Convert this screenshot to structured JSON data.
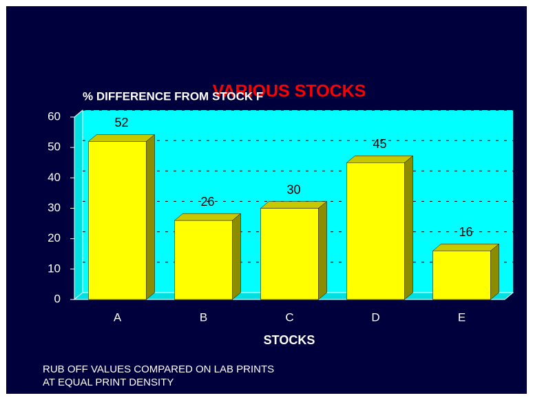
{
  "chart_data": {
    "type": "bar",
    "title": "VARIOUS STOCKS",
    "subtitle": "% DIFFERENCE FROM STOCK F",
    "x_label": "STOCKS",
    "notes": [
      "RUB OFF VALUES COMPARED ON LAB PRINTS",
      "AT EQUAL PRINT DENSITY"
    ],
    "categories": [
      "A",
      "B",
      "C",
      "D",
      "E"
    ],
    "values": [
      52,
      26,
      30,
      45,
      16
    ],
    "color": "#ffff00",
    "ylim": [
      0,
      60
    ],
    "yticks": [
      0,
      10,
      20,
      30,
      40,
      50,
      60
    ],
    "grid": true
  }
}
